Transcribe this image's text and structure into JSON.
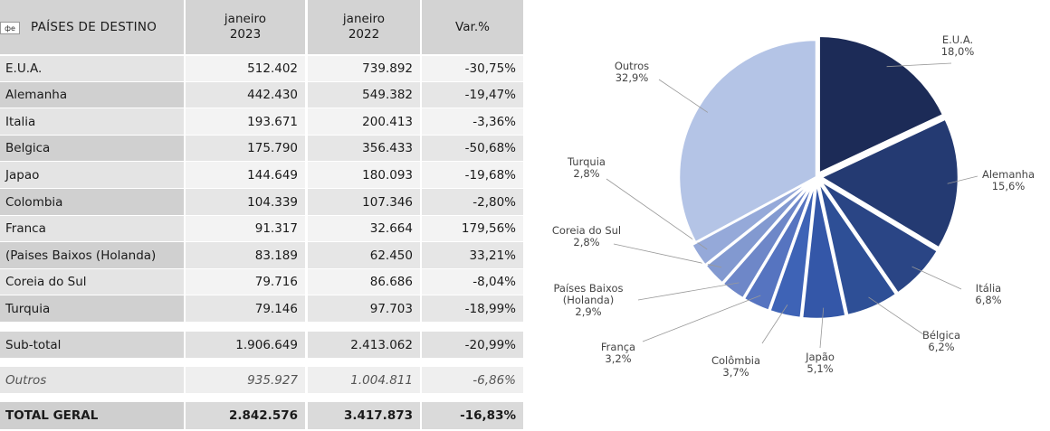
{
  "table": {
    "tag": "фе",
    "header": {
      "country": "PAÍSES DE DESTINO",
      "col1_line1": "janeiro",
      "col1_line2": "2023",
      "col2_line1": "janeiro",
      "col2_line2": "2022",
      "col3": "Var.%"
    },
    "rows": [
      {
        "country": "E.U.A.",
        "v2023": "512.402",
        "v2022": "739.892",
        "var": "-30,75%"
      },
      {
        "country": "Alemanha",
        "v2023": "442.430",
        "v2022": "549.382",
        "var": "-19,47%"
      },
      {
        "country": "Italia",
        "v2023": "193.671",
        "v2022": "200.413",
        "var": "-3,36%"
      },
      {
        "country": "Belgica",
        "v2023": "175.790",
        "v2022": "356.433",
        "var": "-50,68%"
      },
      {
        "country": "Japao",
        "v2023": "144.649",
        "v2022": "180.093",
        "var": "-19,68%"
      },
      {
        "country": "Colombia",
        "v2023": "104.339",
        "v2022": "107.346",
        "var": "-2,80%"
      },
      {
        "country": "Franca",
        "v2023": "91.317",
        "v2022": "32.664",
        "var": "179,56%"
      },
      {
        "country": "(Paises Baixos (Holanda)",
        "v2023": "83.189",
        "v2022": "62.450",
        "var": "33,21%"
      },
      {
        "country": "Coreia do Sul",
        "v2023": "79.716",
        "v2022": "86.686",
        "var": "-8,04%"
      },
      {
        "country": "Turquia",
        "v2023": "79.146",
        "v2022": "97.703",
        "var": "-18,99%"
      }
    ],
    "subtotal": {
      "label": "Sub-total",
      "v2023": "1.906.649",
      "v2022": "2.413.062",
      "var": "-20,99%"
    },
    "outros": {
      "label": "Outros",
      "v2023": "935.927",
      "v2022": "1.004.811",
      "var": "-6,86%"
    },
    "total": {
      "label": "TOTAL GERAL",
      "v2023": "2.842.576",
      "v2022": "3.417.873",
      "var": "-16,83%"
    }
  },
  "chart_data": {
    "type": "pie",
    "start": "12 o'clock, clockwise",
    "slices": [
      {
        "name": "E.U.A.",
        "value": 18.0,
        "label": "18,0%",
        "color": "#1c2b57",
        "exploded": true
      },
      {
        "name": "Alemanha",
        "value": 15.6,
        "label": "15,6%",
        "color": "#243a72",
        "exploded": true
      },
      {
        "name": "Itália",
        "value": 6.8,
        "label": "6,8%",
        "color": "#2a4585",
        "exploded": true
      },
      {
        "name": "Bélgica",
        "value": 6.2,
        "label": "6,2%",
        "color": "#2e4f96",
        "exploded": true
      },
      {
        "name": "Japão",
        "value": 5.1,
        "label": "5,1%",
        "color": "#3457a8",
        "exploded": true
      },
      {
        "name": "Colômbia",
        "value": 3.7,
        "label": "3,7%",
        "color": "#3e63b6",
        "exploded": true
      },
      {
        "name": "França",
        "value": 3.2,
        "label": "3,2%",
        "color": "#5674c0",
        "exploded": true
      },
      {
        "name": "Países Baixos (Holanda)",
        "value": 2.9,
        "label": "2,9%",
        "color": "#6e87c8",
        "exploded": true
      },
      {
        "name": "Coreia do Sul",
        "value": 2.8,
        "label": "2,8%",
        "color": "#8299d0",
        "exploded": true
      },
      {
        "name": "Turquia",
        "value": 2.8,
        "label": "2,8%",
        "color": "#95a9d9",
        "exploded": true
      },
      {
        "name": "Outros",
        "value": 32.9,
        "label": "32,9%",
        "color": "#b4c4e6",
        "exploded": false
      }
    ]
  }
}
